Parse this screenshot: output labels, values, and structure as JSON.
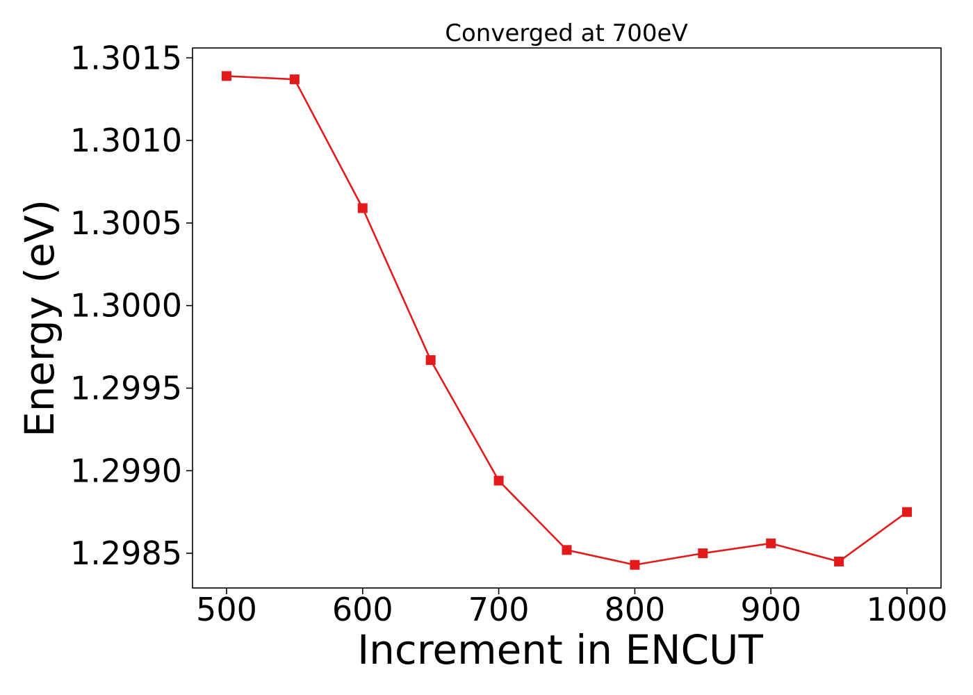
{
  "chart_data": {
    "type": "line",
    "title": "Converged at 700eV",
    "xlabel": "Increment in ENCUT",
    "ylabel": "Energy (eV)",
    "xlim": [
      475,
      1025
    ],
    "ylim": [
      1.29829,
      1.30156
    ],
    "x_ticks": [
      500,
      600,
      700,
      800,
      900,
      1000
    ],
    "y_ticks": [
      1.2985,
      1.299,
      1.2995,
      1.3,
      1.3005,
      1.301,
      1.3015
    ],
    "x_tick_labels": [
      "500",
      "600",
      "700",
      "800",
      "900",
      "1000"
    ],
    "y_tick_labels": [
      "1.2985",
      "1.2990",
      "1.2995",
      "1.3000",
      "1.3005",
      "1.3010",
      "1.3015"
    ],
    "grid": false,
    "series": [
      {
        "color": "#e31a1c",
        "marker": "square",
        "x": [
          500,
          550,
          600,
          650,
          700,
          750,
          800,
          850,
          900,
          950,
          1000
        ],
        "y": [
          1.30139,
          1.30137,
          1.30059,
          1.29967,
          1.29894,
          1.29852,
          1.29843,
          1.2985,
          1.29856,
          1.29845,
          1.29875
        ]
      }
    ]
  }
}
